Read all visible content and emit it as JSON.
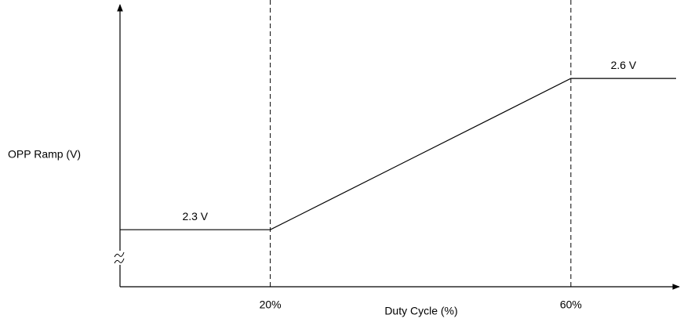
{
  "chart_data": {
    "type": "line",
    "y_label": "OPP Ramp (V)",
    "x_label": "Duty Cycle (%)",
    "x": [
      0,
      20,
      60,
      74
    ],
    "series": [
      {
        "color": "#000000",
        "values": [
          2.3,
          2.3,
          2.6,
          2.6
        ],
        "value_labels": [
          "2.3 V",
          null,
          "2.6 V",
          null
        ]
      }
    ],
    "xlim": [
      0,
      74
    ],
    "ylim": [
      2.19,
      2.74
    ],
    "xticks": [
      {
        "value": 20,
        "label": "20%"
      },
      {
        "value": 60,
        "label": "60%"
      }
    ],
    "grid": true,
    "grid_style": "dashed",
    "y_axis_break": true
  }
}
